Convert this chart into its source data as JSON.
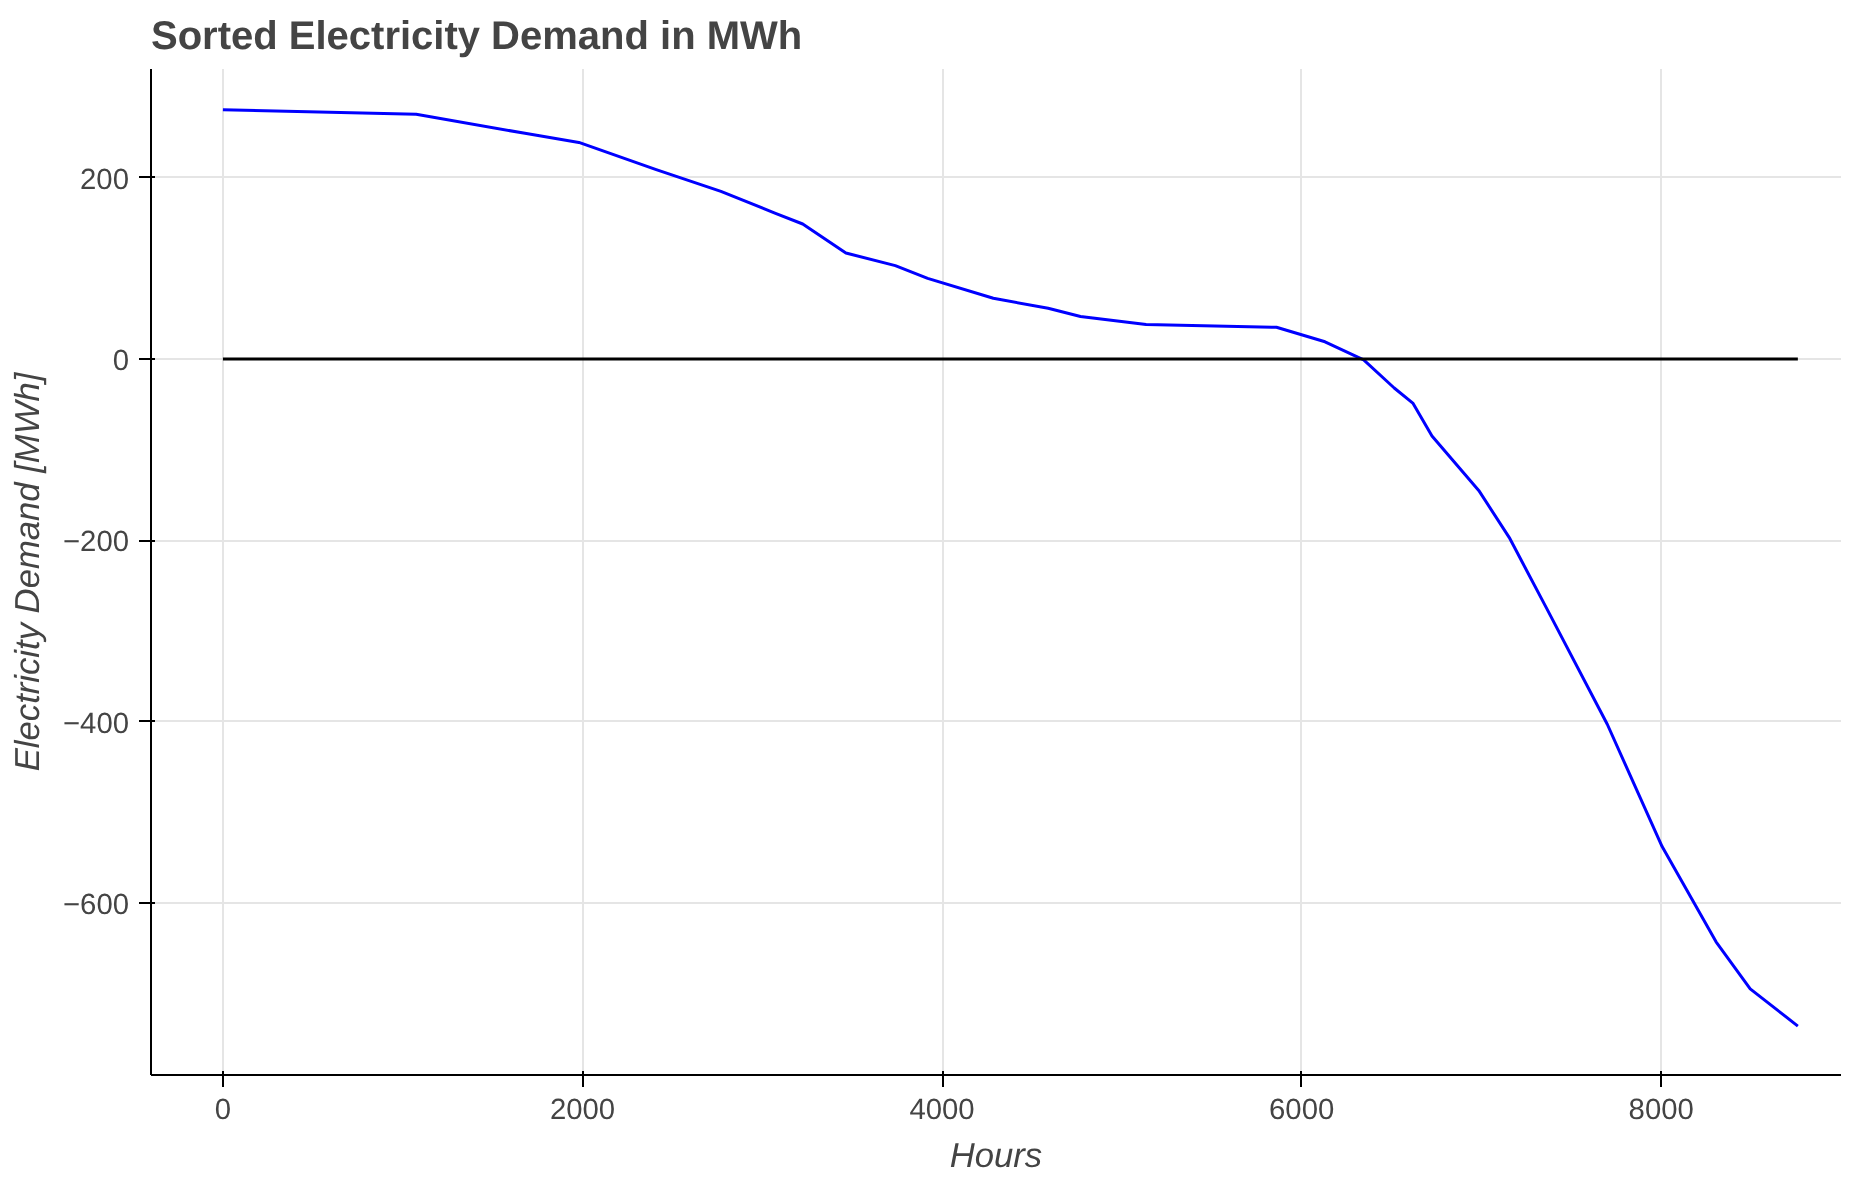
{
  "chart_data": {
    "type": "line",
    "title": "Sorted Electricity Demand in MWh",
    "xlabel": "Hours",
    "ylabel": "Electricity Demand [MWh]",
    "xlim": [
      -400,
      9000
    ],
    "ylim": [
      -790,
      320
    ],
    "xticks": [
      0,
      2000,
      4000,
      6000,
      8000
    ],
    "yticks": [
      -600,
      -400,
      -200,
      0,
      200
    ],
    "grid": true,
    "series": [
      {
        "color": "#0000ff",
        "x": [
          0,
          1075,
          1680,
          1980,
          2410,
          2770,
          3070,
          3225,
          3465,
          3740,
          3920,
          4285,
          4590,
          4770,
          5135,
          5860,
          6130,
          6345,
          6515,
          6620,
          6725,
          6985,
          7155,
          7365,
          7700,
          8005,
          8305,
          8495,
          8760
        ],
        "values": [
          275,
          270,
          249,
          239,
          209,
          185,
          161,
          149,
          117,
          103,
          89,
          67,
          56,
          47,
          38,
          35,
          19,
          -1,
          -32,
          -49,
          -85,
          -145,
          -197,
          -276,
          -403,
          -538,
          -643,
          -695,
          -736
        ]
      },
      {
        "color": "#000000",
        "x": [
          0,
          8760
        ],
        "values": [
          0,
          0
        ]
      }
    ]
  }
}
